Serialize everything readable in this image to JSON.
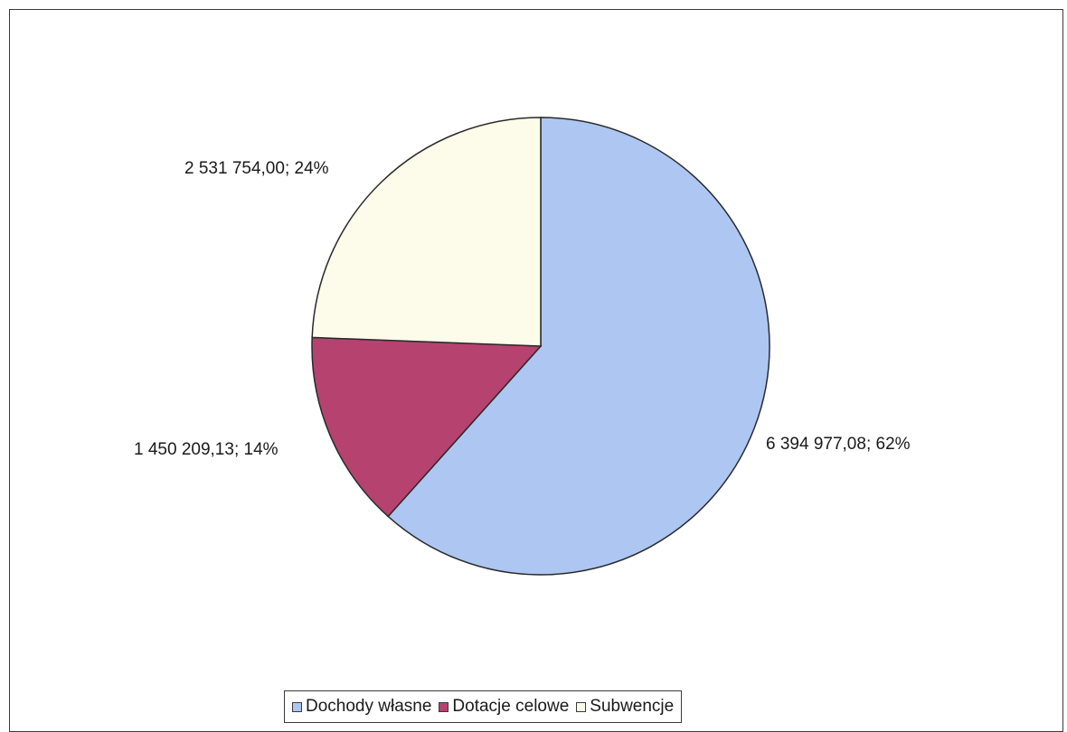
{
  "chart_data": {
    "type": "pie",
    "slices": [
      {
        "name": "Dochody własne",
        "value": 6394977.08,
        "label": "6 394 977,08; 62%",
        "color": "#aec6f2"
      },
      {
        "name": "Dotacje celowe",
        "value": 1450209.13,
        "label": "1 450 209,13; 14%",
        "color": "#b6426f"
      },
      {
        "name": "Subwencje",
        "value": 2531754.0,
        "label": "2 531 754,00; 24%",
        "color": "#fdfcea"
      }
    ],
    "legend_position": "bottom",
    "legend": [
      "Dochody własne",
      "Dotacje celowe",
      "Subwencje"
    ]
  }
}
